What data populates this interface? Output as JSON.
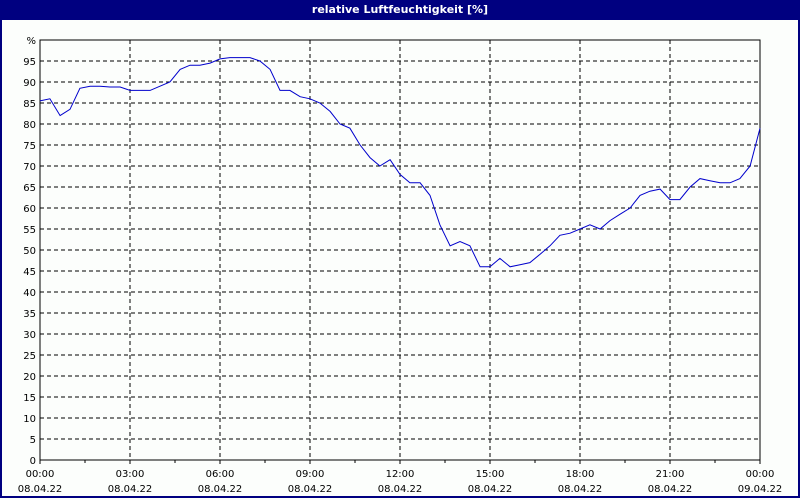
{
  "window": {
    "title": "relative Luftfeuchtigkeit [%]"
  },
  "colors": {
    "titlebar": "#000080",
    "line": "#0000cc",
    "background": "#fcfefc",
    "grid": "#000000"
  },
  "chart_data": {
    "type": "line",
    "title": "relative Luftfeuchtigkeit [%]",
    "xlabel": "",
    "ylabel": "%",
    "ylim": [
      0,
      100
    ],
    "xlim": [
      "08.04.22 00:00",
      "09.04.22 00:00"
    ],
    "grid": true,
    "y_ticks": [
      "0",
      "5",
      "10",
      "15",
      "20",
      "25",
      "30",
      "35",
      "40",
      "45",
      "50",
      "55",
      "60",
      "65",
      "70",
      "75",
      "80",
      "85",
      "90",
      "95",
      "%"
    ],
    "x_ticks": [
      {
        "time": "00:00",
        "date": "08.04.22"
      },
      {
        "time": "03:00",
        "date": "08.04.22"
      },
      {
        "time": "06:00",
        "date": "08.04.22"
      },
      {
        "time": "09:00",
        "date": "08.04.22"
      },
      {
        "time": "12:00",
        "date": "08.04.22"
      },
      {
        "time": "15:00",
        "date": "08.04.22"
      },
      {
        "time": "18:00",
        "date": "08.04.22"
      },
      {
        "time": "21:00",
        "date": "08.04.22"
      },
      {
        "time": "00:00",
        "date": "09.04.22"
      }
    ],
    "series": [
      {
        "name": "relative Luftfeuchtigkeit",
        "x_hours": [
          0,
          0.33,
          0.67,
          1.0,
          1.33,
          1.67,
          2.0,
          2.33,
          2.67,
          3.0,
          3.33,
          3.67,
          4.0,
          4.33,
          4.67,
          5.0,
          5.33,
          5.67,
          6.0,
          6.33,
          6.67,
          7.0,
          7.33,
          7.67,
          8.0,
          8.33,
          8.67,
          9.0,
          9.33,
          9.67,
          10.0,
          10.33,
          10.67,
          11.0,
          11.33,
          11.67,
          12.0,
          12.33,
          12.67,
          13.0,
          13.33,
          13.67,
          14.0,
          14.33,
          14.67,
          15.0,
          15.33,
          15.67,
          16.0,
          16.33,
          16.67,
          17.0,
          17.33,
          17.67,
          18.0,
          18.33,
          18.67,
          19.0,
          19.33,
          19.67,
          20.0,
          20.33,
          20.67,
          21.0,
          21.33,
          21.67,
          22.0,
          22.33,
          22.67,
          23.0,
          23.33,
          23.67,
          24.0
        ],
        "values": [
          85.5,
          86,
          82,
          83.5,
          88.5,
          89,
          89,
          88.8,
          88.8,
          88,
          88,
          88,
          89,
          90,
          93,
          94,
          94,
          94.5,
          95.5,
          95.8,
          95.8,
          95.8,
          95,
          93,
          88,
          88,
          86.5,
          86,
          85,
          83,
          80,
          79,
          75,
          72,
          70,
          71.5,
          68,
          66,
          66,
          63,
          56,
          51,
          52,
          51,
          46,
          46,
          48,
          46,
          46.5,
          47,
          49,
          51,
          53.5,
          54,
          55,
          56,
          55,
          57,
          58.5,
          60,
          63,
          64,
          64.5,
          62,
          62,
          65,
          67,
          66.5,
          66,
          66,
          67,
          70,
          79
        ]
      }
    ]
  }
}
